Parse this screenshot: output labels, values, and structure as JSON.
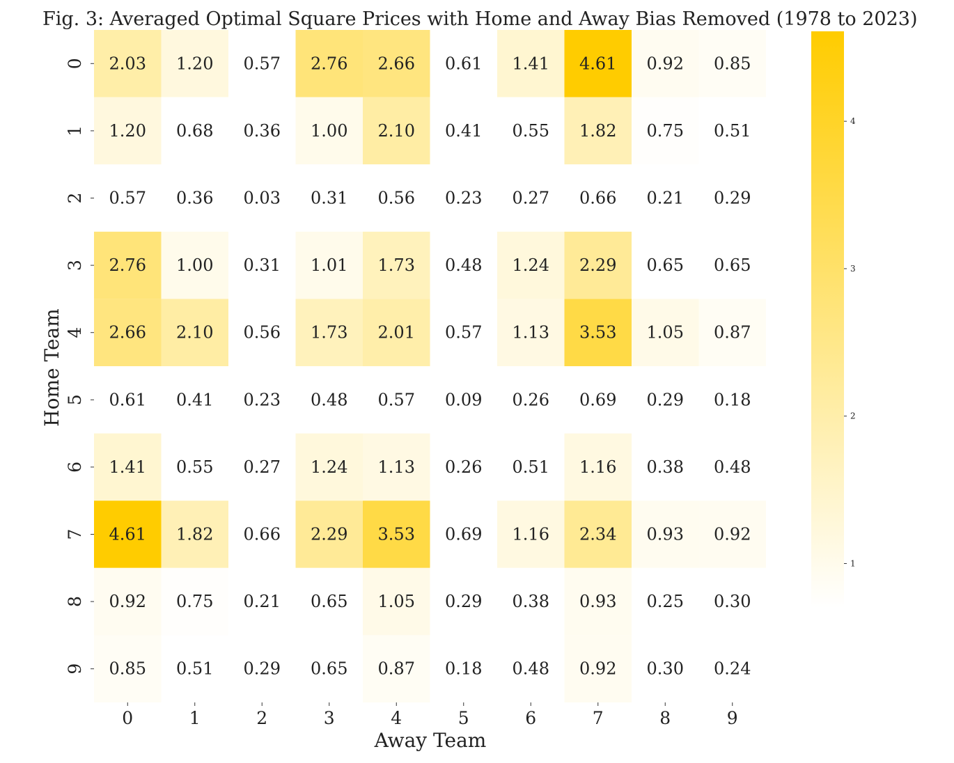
{
  "title": "Fig. 3: Averaged Optimal Square Prices with Home and Away Bias Removed (1978 to 2023)",
  "xlabel": "Away Team",
  "ylabel": "Home Team",
  "chart_data": {
    "type": "heatmap",
    "title": "Fig. 3: Averaged Optimal Square Prices with Home and Away Bias Removed (1978 to 2023)",
    "xlabel": "Away Team",
    "ylabel": "Home Team",
    "x_categories": [
      "0",
      "1",
      "2",
      "3",
      "4",
      "5",
      "6",
      "7",
      "8",
      "9"
    ],
    "y_categories": [
      "0",
      "1",
      "2",
      "3",
      "4",
      "5",
      "6",
      "7",
      "8",
      "9"
    ],
    "values": [
      [
        2.03,
        1.2,
        0.57,
        2.76,
        2.66,
        0.61,
        1.41,
        4.61,
        0.92,
        0.85
      ],
      [
        1.2,
        0.68,
        0.36,
        1.0,
        2.1,
        0.41,
        0.55,
        1.82,
        0.75,
        0.51
      ],
      [
        0.57,
        0.36,
        0.03,
        0.31,
        0.56,
        0.23,
        0.27,
        0.66,
        0.21,
        0.29
      ],
      [
        2.76,
        1.0,
        0.31,
        1.01,
        1.73,
        0.48,
        1.24,
        2.29,
        0.65,
        0.65
      ],
      [
        2.66,
        2.1,
        0.56,
        1.73,
        2.01,
        0.57,
        1.13,
        3.53,
        1.05,
        0.87
      ],
      [
        0.61,
        0.41,
        0.23,
        0.48,
        0.57,
        0.09,
        0.26,
        0.69,
        0.29,
        0.18
      ],
      [
        1.41,
        0.55,
        0.27,
        1.24,
        1.13,
        0.26,
        0.51,
        1.16,
        0.38,
        0.48
      ],
      [
        4.61,
        1.82,
        0.66,
        2.29,
        3.53,
        0.69,
        1.16,
        2.34,
        0.93,
        0.92
      ],
      [
        0.92,
        0.75,
        0.21,
        0.65,
        1.05,
        0.29,
        0.38,
        0.93,
        0.25,
        0.3
      ],
      [
        0.85,
        0.51,
        0.29,
        0.65,
        0.87,
        0.18,
        0.48,
        0.92,
        0.3,
        0.24
      ]
    ],
    "colorbar": {
      "min": 0.7,
      "max": 4.61,
      "ticks": [
        1,
        2,
        3,
        4
      ],
      "tick_labels": [
        "1",
        "2",
        "3",
        "4"
      ]
    },
    "colors": {
      "low": "#ffffff",
      "high": "#ffcc00"
    },
    "grid": false,
    "legend": "colorbar-right"
  }
}
